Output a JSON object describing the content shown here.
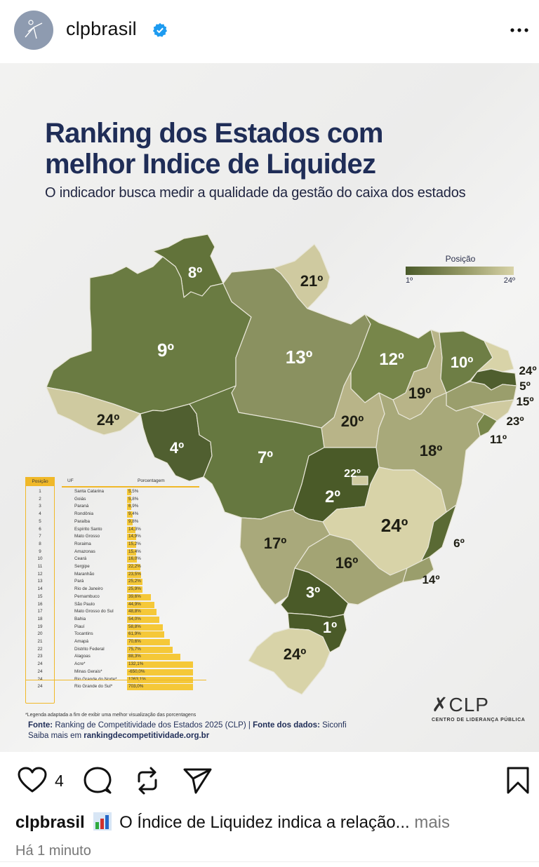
{
  "post": {
    "username": "clpbrasil",
    "verified": true,
    "more_icon": "more-horizontal-icon",
    "avatar_icon": "clp-logo-icon"
  },
  "image": {
    "title_line1": "Ranking dos Estados com",
    "title_line2": "melhor Indice de Liquidez",
    "subtitle": "O indicador busca medir a qualidade da gestão do caixa dos estados",
    "legend": {
      "label": "Posição",
      "min_label": "1º",
      "max_label": "24º",
      "color_min": "#4a5a2a",
      "color_max": "#d8d3a8"
    },
    "table": {
      "col_position": "Posição",
      "col_uf": "UF",
      "col_percent": "Porcentagem"
    },
    "footnote": "*Legenda adaptada a fim de exibir uma melhor visualização das porcentagens",
    "source_label": "Fonte:",
    "source_text": "Ranking de Competitividade dos Estados 2025 (CLP) |",
    "data_source_label": "Fonte dos dados:",
    "data_source_text": "Siconfi",
    "more_info_text": "Saiba mais em",
    "more_info_link": "rankingdecompetitividade.org.br",
    "logo_text": "CLP",
    "logo_subtitle": "CENTRO DE LIDERANÇA PÚBLICA"
  },
  "map_labels": {
    "RR": "8º",
    "AP": "21º",
    "AM": "9º",
    "PA": "13º",
    "MA": "12º",
    "CE": "10º",
    "RN": "24º",
    "PB": "5º",
    "PE": "15º",
    "AL": "23º",
    "SE": "11º",
    "PI": "19º",
    "AC": "24º",
    "RO": "4º",
    "TO": "20º",
    "BA": "18º",
    "MT": "7º",
    "DF": "22º",
    "GO": "2º",
    "MG": "24º",
    "ES": "6º",
    "MS": "17º",
    "SP": "16º",
    "RJ": "14º",
    "PR": "3º",
    "SC": "1º",
    "RS": "24º"
  },
  "chart_data": {
    "type": "table",
    "title": "Ranking dos Estados com melhor Indice de Liquidez",
    "subtitle": "O indicador busca medir a qualidade da gestão do caixa dos estados",
    "columns": [
      "Posição",
      "UF",
      "Porcentagem"
    ],
    "rows": [
      {
        "pos": "1",
        "uf": "Santa Catarina",
        "pct": "5,5%",
        "value": 5.5
      },
      {
        "pos": "2",
        "uf": "Goiás",
        "pct": "5,8%",
        "value": 5.8
      },
      {
        "pos": "3",
        "uf": "Paraná",
        "pct": "6,9%",
        "value": 6.9
      },
      {
        "pos": "4",
        "uf": "Rondônia",
        "pct": "9,4%",
        "value": 9.4
      },
      {
        "pos": "5",
        "uf": "Paraíba",
        "pct": "9,8%",
        "value": 9.8
      },
      {
        "pos": "6",
        "uf": "Espírito Santo",
        "pct": "14,3%",
        "value": 14.3
      },
      {
        "pos": "7",
        "uf": "Mato Grosso",
        "pct": "14,9%",
        "value": 14.9
      },
      {
        "pos": "8",
        "uf": "Roraima",
        "pct": "15,2%",
        "value": 15.2
      },
      {
        "pos": "9",
        "uf": "Amazonas",
        "pct": "15,4%",
        "value": 15.4
      },
      {
        "pos": "10",
        "uf": "Ceará",
        "pct": "16,0%",
        "value": 16.0
      },
      {
        "pos": "11",
        "uf": "Sergipe",
        "pct": "22,2%",
        "value": 22.2
      },
      {
        "pos": "12",
        "uf": "Maranhão",
        "pct": "23,5%",
        "value": 23.5
      },
      {
        "pos": "13",
        "uf": "Pará",
        "pct": "25,2%",
        "value": 25.2
      },
      {
        "pos": "14",
        "uf": "Rio de Janeiro",
        "pct": "25,9%",
        "value": 25.9
      },
      {
        "pos": "15",
        "uf": "Pernambuco",
        "pct": "39,6%",
        "value": 39.6
      },
      {
        "pos": "16",
        "uf": "São Paulo",
        "pct": "44,9%",
        "value": 44.9
      },
      {
        "pos": "17",
        "uf": "Mato Grosso do Sul",
        "pct": "48,8%",
        "value": 48.8
      },
      {
        "pos": "18",
        "uf": "Bahia",
        "pct": "54,0%",
        "value": 54.0
      },
      {
        "pos": "19",
        "uf": "Piauí",
        "pct": "58,8%",
        "value": 58.8
      },
      {
        "pos": "20",
        "uf": "Tocantins",
        "pct": "61,9%",
        "value": 61.9
      },
      {
        "pos": "21",
        "uf": "Amapá",
        "pct": "70,6%",
        "value": 70.6
      },
      {
        "pos": "22",
        "uf": "Distrito Federal",
        "pct": "75,7%",
        "value": 75.7
      },
      {
        "pos": "23",
        "uf": "Alagoas",
        "pct": "88,3%",
        "value": 88.3
      },
      {
        "pos": "24",
        "uf": "Acre*",
        "pct": "132,1%",
        "value": 132.1
      },
      {
        "pos": "24",
        "uf": "Minas Gerais*",
        "pct": "-650,0%",
        "value": -650.0
      },
      {
        "pos": "24",
        "uf": "Rio Grande do Norte*",
        "pct": "1263,1%",
        "value": 1263.1
      },
      {
        "pos": "24",
        "uf": "Rio Grande do Sul*",
        "pct": "703,0%",
        "value": 703.0
      }
    ],
    "note": "*Legenda adaptada a fim de exibir uma melhor visualização das porcentagens"
  },
  "actions": {
    "like_count": "4",
    "like_icon": "heart-icon",
    "comment_icon": "comment-icon",
    "repost_icon": "repost-icon",
    "share_icon": "send-icon",
    "save_icon": "bookmark-icon"
  },
  "caption": {
    "username": "clpbrasil",
    "emoji": "bar-chart-emoji",
    "text": "O Índice de Liquidez indica a relação...",
    "more": "mais"
  },
  "timestamp": "Há 1 minuto"
}
